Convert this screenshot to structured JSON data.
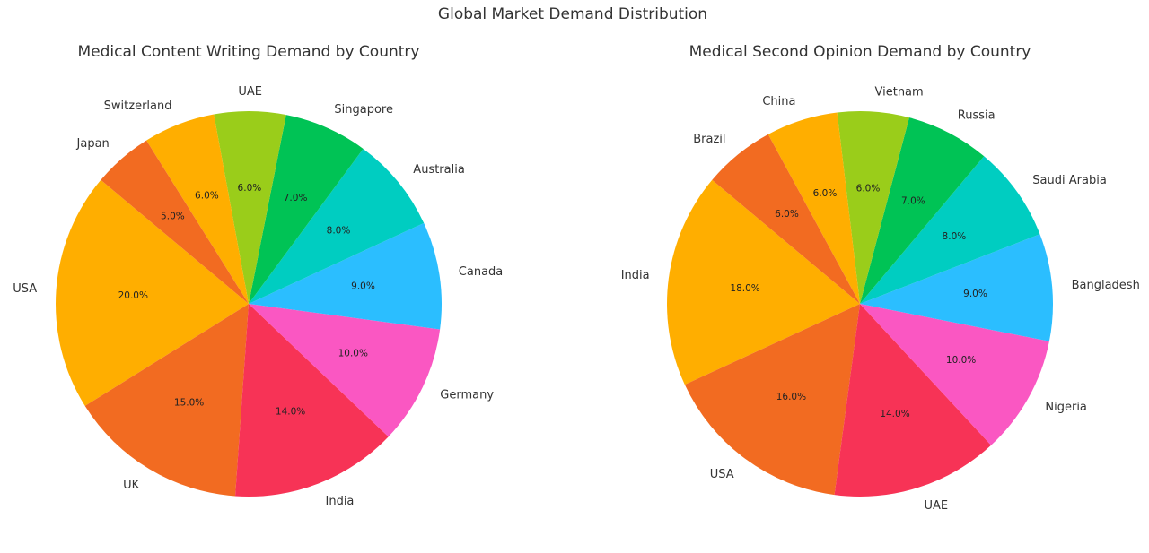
{
  "suptitle": "Global Market Demand Distribution",
  "colors": {
    "palette": [
      "#FFAE00",
      "#F26B21",
      "#F73356",
      "#FA57C2",
      "#2BBEFF",
      "#00CDC1",
      "#00C355",
      "#9ACD1A",
      "#FFAE00",
      "#F26B21"
    ]
  },
  "chart_data": [
    {
      "type": "pie",
      "title": "Medical Content Writing Demand by Country",
      "labels": [
        "USA",
        "UK",
        "India",
        "Germany",
        "Canada",
        "Australia",
        "Singapore",
        "UAE",
        "Switzerland",
        "Japan"
      ],
      "values": [
        20,
        15,
        14,
        10,
        9,
        8,
        7,
        6,
        6,
        5
      ],
      "value_labels": [
        "20.0%",
        "15.0%",
        "14.0%",
        "10.0%",
        "9.0%",
        "8.0%",
        "7.0%",
        "6.0%",
        "6.0%",
        "5.0%"
      ],
      "colors": [
        "#FFAE00",
        "#F26B21",
        "#F73356",
        "#FA57C2",
        "#2BBEFF",
        "#00CDC1",
        "#00C355",
        "#9ACD1A",
        "#FFAE00",
        "#F26B21"
      ],
      "start_angle_deg": 140,
      "direction": "counterclockwise"
    },
    {
      "type": "pie",
      "title": "Medical Second Opinion Demand by Country",
      "labels": [
        "India",
        "USA",
        "UAE",
        "Nigeria",
        "Bangladesh",
        "Saudi Arabia",
        "Russia",
        "Vietnam",
        "China",
        "Brazil"
      ],
      "values": [
        18,
        16,
        14,
        10,
        9,
        8,
        7,
        6,
        6,
        6
      ],
      "value_labels": [
        "18.0%",
        "16.0%",
        "14.0%",
        "10.0%",
        "9.0%",
        "8.0%",
        "7.0%",
        "6.0%",
        "6.0%",
        "6.0%"
      ],
      "colors": [
        "#FFAE00",
        "#F26B21",
        "#F73356",
        "#FA57C2",
        "#2BBEFF",
        "#00CDC1",
        "#00C355",
        "#9ACD1A",
        "#FFAE00",
        "#F26B21"
      ],
      "start_angle_deg": 140,
      "direction": "counterclockwise"
    }
  ]
}
